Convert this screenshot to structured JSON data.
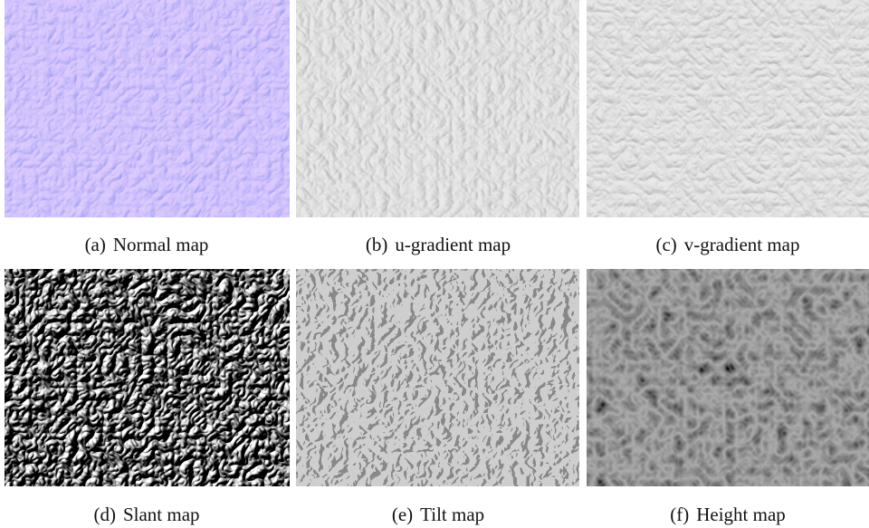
{
  "figure": {
    "panels": [
      {
        "label": "(a)",
        "caption": "Normal map"
      },
      {
        "label": "(b)",
        "caption": "u-gradient map"
      },
      {
        "label": "(c)",
        "caption": "v-gradient map"
      },
      {
        "label": "(d)",
        "caption": "Slant map"
      },
      {
        "label": "(e)",
        "caption": "Tilt map"
      },
      {
        "label": "(f)",
        "caption": "Height map"
      }
    ]
  }
}
